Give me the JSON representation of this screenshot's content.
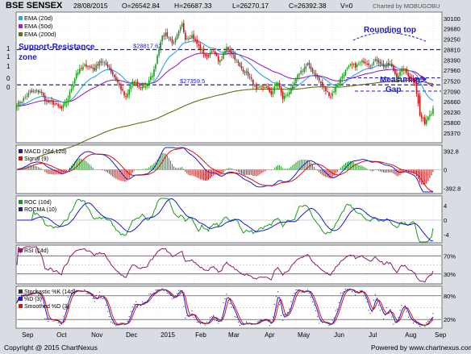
{
  "header": {
    "title": "BSE SENSEX",
    "date": "28/08/2015",
    "open": "O=26542.84",
    "high": "H=26687.33",
    "low": "L=26270.17",
    "close": "C=26392.38",
    "volume": "V=0",
    "credit": "Charted by MOBUGOBU"
  },
  "footer": {
    "copyright": "Copyright @ 2015 ChartNexus",
    "powered": "Powered by www.chartnexus.com"
  },
  "colors": {
    "price_up": "#1a9a1a",
    "price_down": "#cc1111",
    "ema20": "#2aa0e8",
    "ema50": "#a020c0",
    "ema200": "#6b6b10",
    "annotation": "#1a1acc",
    "panel_bg": "#ffffff"
  },
  "chart_data": [
    {
      "type": "candlestick",
      "title": "BSE SENSEX",
      "legend": [
        "EMA (20d)",
        "EMA (50d)",
        "EMA (200d)"
      ],
      "y_ticks": [
        30100,
        29680,
        29250,
        28810,
        28390,
        27960,
        27520,
        27090,
        26660,
        26230,
        25800,
        25370
      ],
      "left_axis_ticks": [
        "1",
        "1",
        "1",
        "0",
        "0"
      ],
      "ylim": [
        25000,
        30300
      ],
      "x_tick_labels": [
        "Sep",
        "Oct",
        "Nov",
        "Dec",
        "2015",
        "Feb",
        "Mar",
        "Apr",
        "May",
        "Jun",
        "Jul",
        "Aug",
        "Sep"
      ],
      "annotations": [
        {
          "text": "Support-Resistance",
          "kind": "label"
        },
        {
          "text": "zone",
          "kind": "label"
        },
        {
          "text": "Rounding top",
          "kind": "label"
        },
        {
          "text": "Measuring",
          "kind": "label"
        },
        {
          "text": "Gap",
          "kind": "label"
        },
        {
          "text": "$28817.62",
          "kind": "level",
          "value": 28817.62
        },
        {
          "text": "$27359.5",
          "kind": "level",
          "value": 27359.5
        }
      ],
      "close_anchors": [
        [
          0,
          26560
        ],
        [
          3,
          26700
        ],
        [
          8,
          27050
        ],
        [
          14,
          27100
        ],
        [
          18,
          26650
        ],
        [
          22,
          26600
        ],
        [
          27,
          26350
        ],
        [
          31,
          26800
        ],
        [
          36,
          27850
        ],
        [
          42,
          28180
        ],
        [
          47,
          28000
        ],
        [
          50,
          28350
        ],
        [
          55,
          28150
        ],
        [
          61,
          27450
        ],
        [
          66,
          26800
        ],
        [
          70,
          27500
        ],
        [
          74,
          27250
        ],
        [
          79,
          27350
        ],
        [
          83,
          27950
        ],
        [
          87,
          29200
        ],
        [
          90,
          29500
        ],
        [
          95,
          29050
        ],
        [
          100,
          29850
        ],
        [
          102,
          29300
        ],
        [
          106,
          29400
        ],
        [
          110,
          28950
        ],
        [
          115,
          28500
        ],
        [
          118,
          28800
        ],
        [
          123,
          28300
        ],
        [
          127,
          28900
        ],
        [
          131,
          28600
        ],
        [
          135,
          28100
        ],
        [
          140,
          27800
        ],
        [
          145,
          27150
        ],
        [
          150,
          27300
        ],
        [
          154,
          27000
        ],
        [
          158,
          27450
        ],
        [
          161,
          26800
        ],
        [
          166,
          27150
        ],
        [
          171,
          27850
        ],
        [
          176,
          28200
        ],
        [
          181,
          27750
        ],
        [
          186,
          27200
        ],
        [
          190,
          26900
        ],
        [
          194,
          27350
        ],
        [
          198,
          27850
        ],
        [
          202,
          28150
        ],
        [
          206,
          28150
        ],
        [
          210,
          28350
        ],
        [
          214,
          28200
        ],
        [
          218,
          28400
        ],
        [
          222,
          28150
        ],
        [
          226,
          28200
        ],
        [
          230,
          27700
        ],
        [
          234,
          28000
        ],
        [
          238,
          27700
        ],
        [
          241,
          27500
        ],
        [
          244,
          26100
        ],
        [
          247,
          25800
        ],
        [
          250,
          26200
        ],
        [
          252,
          26392
        ]
      ]
    },
    {
      "type": "line",
      "title": "MACD (26d,12d)",
      "legend": [
        "MACD (26d,12d)",
        "Signal (9)"
      ],
      "y_ticks": [
        "392.8",
        "0",
        "-392.8"
      ],
      "ylim": [
        -470,
        470
      ]
    },
    {
      "type": "line",
      "title": "ROC (10d)",
      "legend": [
        "ROC (10d)",
        "ROCMA (10)"
      ],
      "y_ticks": [
        "4",
        "0",
        "-4"
      ],
      "ylim": [
        -6,
        6
      ]
    },
    {
      "type": "line",
      "title": "RSI (14d)",
      "legend": [
        "RSI (14d)"
      ],
      "y_ticks": [
        "70%",
        "30%"
      ],
      "ylim": [
        10,
        90
      ]
    },
    {
      "type": "line",
      "title": "Stochastic %K (14d)",
      "legend": [
        "Stochastic %K (14d)",
        "%D (3)",
        "Smoothed %D (3)"
      ],
      "y_ticks": [
        "80%",
        "20%"
      ],
      "ylim": [
        0,
        100
      ]
    }
  ]
}
